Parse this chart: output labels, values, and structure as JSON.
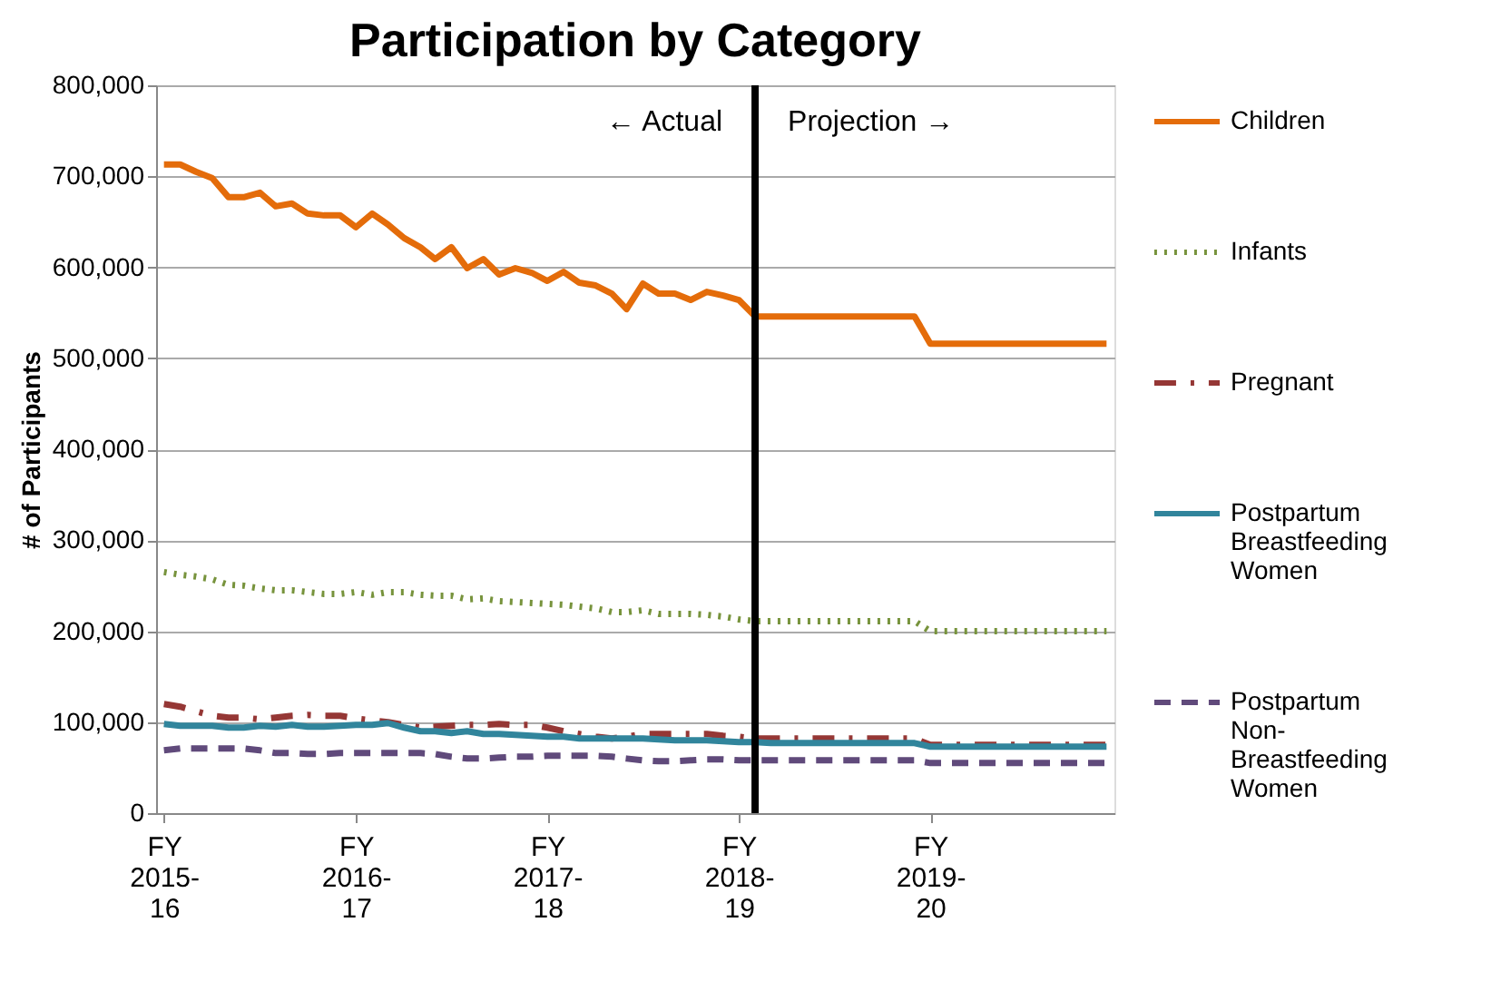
{
  "chart_data": {
    "type": "line",
    "title": "Participation by Category",
    "ylabel": "# of Participants",
    "x": [
      "2015-10",
      "2015-11",
      "2015-12",
      "2016-01",
      "2016-02",
      "2016-03",
      "2016-04",
      "2016-05",
      "2016-06",
      "2016-07",
      "2016-08",
      "2016-09",
      "2016-10",
      "2016-11",
      "2016-12",
      "2017-01",
      "2017-02",
      "2017-03",
      "2017-04",
      "2017-05",
      "2017-06",
      "2017-07",
      "2017-08",
      "2017-09",
      "2017-10",
      "2017-11",
      "2017-12",
      "2018-01",
      "2018-02",
      "2018-03",
      "2018-04",
      "2018-05",
      "2018-06",
      "2018-07",
      "2018-08",
      "2018-09",
      "2018-10",
      "2018-11",
      "2018-12",
      "2019-01",
      "2019-02",
      "2019-03",
      "2019-04",
      "2019-05",
      "2019-06",
      "2019-07",
      "2019-08",
      "2019-09",
      "2019-10",
      "2019-11",
      "2019-12",
      "2020-01",
      "2020-02",
      "2020-03",
      "2020-04",
      "2020-05",
      "2020-06",
      "2020-07",
      "2020-08",
      "2020-09"
    ],
    "series": [
      {
        "name": "Children",
        "color": "#e46c0a",
        "line_style": "solid",
        "values": [
          713000,
          713000,
          705000,
          698000,
          677000,
          677000,
          682000,
          667000,
          670000,
          659000,
          657000,
          657000,
          644000,
          659000,
          647000,
          632000,
          622000,
          609000,
          622000,
          599000,
          609000,
          592000,
          599000,
          594000,
          585000,
          595000,
          583000,
          580000,
          571000,
          554000,
          582000,
          571000,
          571000,
          564000,
          573000,
          569000,
          564000,
          546000,
          546000,
          546000,
          546000,
          546000,
          546000,
          546000,
          546000,
          546000,
          546000,
          546000,
          516000,
          516000,
          516000,
          516000,
          516000,
          516000,
          516000,
          516000,
          516000,
          516000,
          516000,
          516000
        ]
      },
      {
        "name": "Infants",
        "color": "#77933c",
        "line_style": "dotted",
        "values": [
          265000,
          262000,
          260000,
          257000,
          251000,
          250000,
          247000,
          245000,
          245000,
          243000,
          241000,
          241000,
          243000,
          240000,
          243000,
          243000,
          240000,
          239000,
          239000,
          235000,
          236000,
          233000,
          232000,
          231000,
          230000,
          229000,
          227000,
          225000,
          221000,
          221000,
          223000,
          219000,
          219000,
          219000,
          218000,
          216000,
          213000,
          211000,
          211000,
          211000,
          211000,
          211000,
          211000,
          211000,
          211000,
          211000,
          211000,
          211000,
          200000,
          200000,
          200000,
          200000,
          200000,
          200000,
          200000,
          200000,
          200000,
          200000,
          200000,
          200000
        ]
      },
      {
        "name": "Pregnant",
        "color": "#953735",
        "line_style": "dashdot",
        "values": [
          120000,
          117000,
          112000,
          107000,
          105000,
          105000,
          103000,
          105000,
          107000,
          108000,
          107000,
          107000,
          104000,
          102000,
          100000,
          97000,
          94000,
          95000,
          96000,
          97000,
          97000,
          98000,
          97000,
          97000,
          94000,
          90000,
          87000,
          84000,
          82000,
          84000,
          87000,
          87000,
          87000,
          87000,
          87000,
          85000,
          84000,
          82000,
          82000,
          82000,
          82000,
          82000,
          82000,
          82000,
          82000,
          82000,
          82000,
          82000,
          75000,
          75000,
          75000,
          75000,
          75000,
          75000,
          75000,
          75000,
          75000,
          75000,
          75000,
          75000
        ]
      },
      {
        "name": "Postpartum Breastfeeding Women",
        "color": "#31859c",
        "line_style": "solid",
        "values": [
          98000,
          96000,
          96000,
          96000,
          94000,
          94000,
          96000,
          95000,
          97000,
          95000,
          95000,
          96000,
          97000,
          97000,
          99000,
          94000,
          90000,
          90000,
          88000,
          90000,
          87000,
          87000,
          86000,
          85000,
          84000,
          84000,
          82000,
          82000,
          82000,
          82000,
          82000,
          81000,
          80000,
          80000,
          80000,
          79000,
          78000,
          78000,
          77000,
          77000,
          77000,
          77000,
          77000,
          77000,
          77000,
          77000,
          77000,
          77000,
          73000,
          73000,
          73000,
          73000,
          73000,
          73000,
          73000,
          73000,
          73000,
          73000,
          73000,
          73000
        ]
      },
      {
        "name": "Postpartum Non-Breastfeeding Women",
        "color": "#604a7b",
        "line_style": "dashed",
        "values": [
          69000,
          71000,
          71000,
          71000,
          71000,
          71000,
          69000,
          66000,
          66000,
          65000,
          65000,
          66000,
          66000,
          66000,
          66000,
          66000,
          66000,
          65000,
          62000,
          60000,
          60000,
          61000,
          62000,
          62000,
          63000,
          63000,
          63000,
          63000,
          62000,
          60000,
          58000,
          57000,
          57000,
          58000,
          59000,
          59000,
          58000,
          58000,
          58000,
          58000,
          58000,
          58000,
          58000,
          58000,
          58000,
          58000,
          58000,
          58000,
          55000,
          55000,
          55000,
          55000,
          55000,
          55000,
          55000,
          55000,
          55000,
          55000,
          55000,
          55000
        ]
      }
    ],
    "xlim": [
      "2015-09-16",
      "2020-09-16"
    ],
    "xticks": [
      {
        "value": "2015-10",
        "label": "FY 2015-16"
      },
      {
        "value": "2016-10",
        "label": "FY 2016-17"
      },
      {
        "value": "2017-10",
        "label": "FY 2017-18"
      },
      {
        "value": "2018-10",
        "label": "FY 2018-19"
      },
      {
        "value": "2019-10",
        "label": "FY 2019-20"
      }
    ],
    "ylim": [
      0,
      800000
    ],
    "yticks": [
      0,
      {
        "value": 100000,
        "label": "100,000"
      },
      {
        "value": 200000,
        "label": "200,000"
      },
      {
        "value": 300000,
        "label": "300,000"
      },
      {
        "value": 400000,
        "label": "400,000"
      },
      {
        "value": 500000,
        "label": "500,000"
      },
      {
        "value": 600000,
        "label": "600,000"
      },
      {
        "value": 700000,
        "label": "700,000"
      },
      {
        "value": 800000,
        "label": "800,000"
      }
    ],
    "ref_lines": [
      {
        "axis": "x",
        "value": "2018-11",
        "color": "#000000",
        "line_style": "solid"
      }
    ],
    "annotations": [
      "← Actual",
      "Projection →"
    ],
    "grid": "y",
    "legend": "right"
  }
}
